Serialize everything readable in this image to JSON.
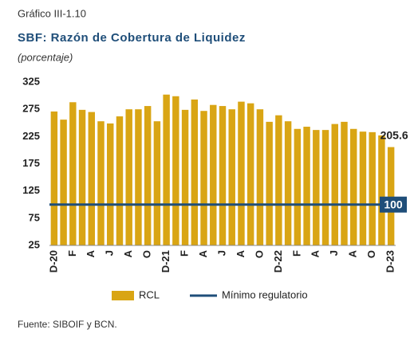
{
  "chart_data": {
    "type": "bar",
    "label": "Gráfico III-1.10",
    "title": "SBF: Razón de Cobertura de Liquidez",
    "subtitle": "(porcentaje)",
    "source": "Fuente: SIBOIF y BCN.",
    "categories": [
      "D-20",
      null,
      "F",
      null,
      "A",
      null,
      "J",
      null,
      "A",
      null,
      "O",
      null,
      "D-21",
      null,
      "F",
      null,
      "A",
      null,
      "J",
      null,
      "A",
      null,
      "O",
      null,
      "D-22",
      null,
      "F",
      null,
      "A",
      null,
      "J",
      null,
      "A",
      null,
      "O",
      null,
      "D-23"
    ],
    "series": [
      {
        "name": "RCL",
        "color": "#d9a514",
        "values": [
          271,
          256,
          288,
          274,
          270,
          253,
          249,
          262,
          275,
          275,
          281,
          253,
          302,
          299,
          274,
          293,
          272,
          283,
          281,
          275,
          289,
          286,
          275,
          252,
          264,
          253,
          239,
          243,
          237,
          237,
          248,
          252,
          239,
          234,
          233,
          227,
          205.6
        ]
      }
    ],
    "reference_line": {
      "name": "Mínimo regulatorio",
      "value": 100,
      "color": "#1f4e79"
    },
    "ylim": [
      25,
      325
    ],
    "yticks": [
      25,
      75,
      125,
      175,
      225,
      275,
      325
    ],
    "legend": "bottom"
  }
}
